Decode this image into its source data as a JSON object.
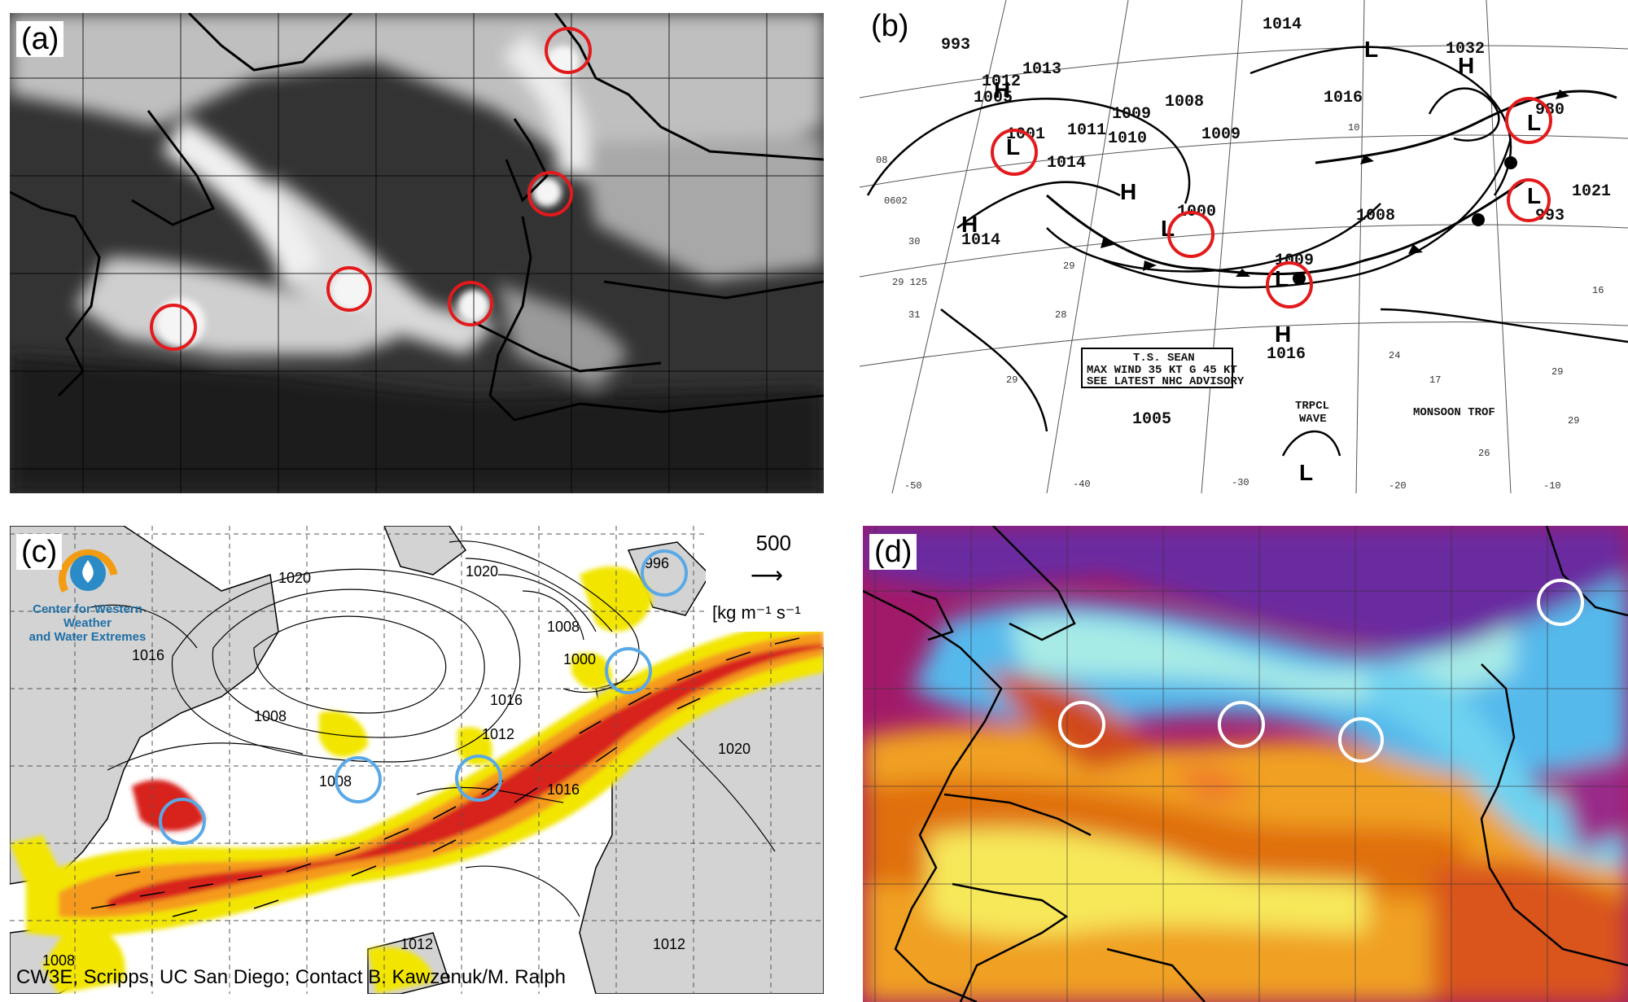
{
  "panels": {
    "a": {
      "label": "(a)"
    },
    "b": {
      "label": "(b)",
      "pressures": [
        "993",
        "1012",
        "1013",
        "1005",
        "1001",
        "1011",
        "1009",
        "1008",
        "1014",
        "1010",
        "1009",
        "1014",
        "1016",
        "1032",
        "1008",
        "980",
        "993",
        "1021",
        "1000",
        "1009",
        "1016",
        "1005",
        "1008",
        "1014"
      ],
      "advisory": [
        "T.S. SEAN",
        "MAX WIND 35 KT G 45 KT",
        "SEE LATEST NHC ADVISORY"
      ],
      "tropical_wave": [
        "TRPCL",
        "WAVE"
      ],
      "monsoon": "MONSOON TROF",
      "longitudes": [
        "-50",
        "-40",
        "-30",
        "-20",
        "-10"
      ]
    },
    "c": {
      "label": "(c)",
      "org_line1": "Center for Western Weather",
      "org_line2": "and Water Extremes",
      "legend_value": "500",
      "legend_unit": "[kg m⁻¹ s⁻¹",
      "credit": "CW3E, Scripps, UC San Diego; Contact B. Kawzenuk/M. Ralph",
      "contours": [
        "1020",
        "1020",
        "1016",
        "1008",
        "1000",
        "996",
        "1016",
        "1008",
        "1012",
        "1008",
        "1016",
        "1020",
        "1012",
        "1008",
        "1012"
      ]
    },
    "d": {
      "label": "(d)"
    }
  },
  "colors": {
    "circle_red": "#e31a1c",
    "circle_blue": "#5aa9e6",
    "circle_white": "#ffffff",
    "ivt_yellow": "#f2e600",
    "ivt_orange": "#f59a1c",
    "ivt_red": "#d8231c"
  }
}
